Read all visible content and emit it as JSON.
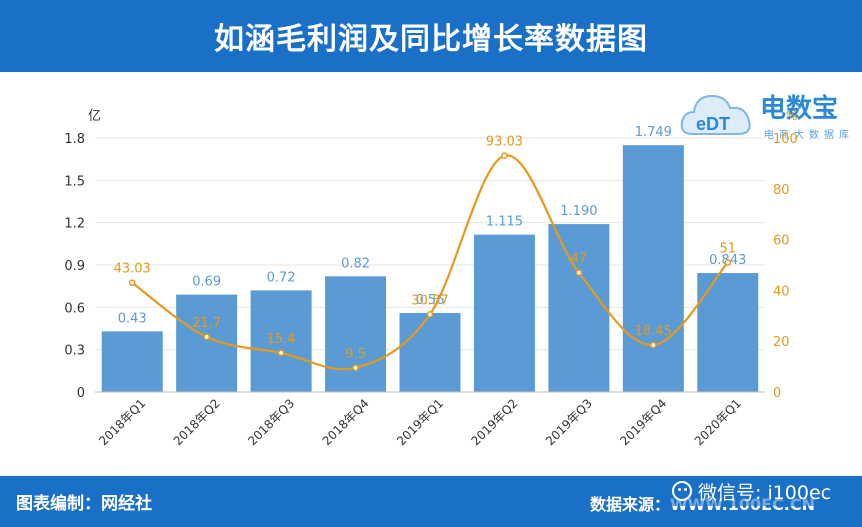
{
  "header": {
    "title": "如涵毛利润及同比增长率数据图"
  },
  "footer": {
    "credit": "图表编制：网经社",
    "source": "数据来源：WWW.100EC.CN",
    "wechat": "微信号: i100ec"
  },
  "logo": {
    "brand": "电数宝",
    "tag": "电商大数据库",
    "badge": "eDT"
  },
  "colors": {
    "bar": "#5b9bd5",
    "line": "#e59a1c",
    "header": "#1a6fc6",
    "bar_label": "#5b9bd5",
    "line_label": "#e59a1c"
  },
  "chart_data": {
    "type": "bar",
    "title": "如涵毛利润及同比增长率数据图",
    "categories": [
      "2018年Q1",
      "2018年Q2",
      "2018年Q3",
      "2018年Q4",
      "2019年Q1",
      "2019年Q2",
      "2019年Q3",
      "2019年Q4",
      "2020年Q1"
    ],
    "y_unit_label": "亿",
    "y2_unit_label": "%",
    "ylim": [
      0,
      1.8
    ],
    "yticks": [
      "0",
      "0.3",
      "0.6",
      "0.9",
      "1.2",
      "1.5",
      "1.8"
    ],
    "y2lim": [
      0,
      100
    ],
    "y2ticks": [
      "0",
      "20",
      "40",
      "60",
      "80",
      "100"
    ],
    "series": [
      {
        "type": "bar",
        "axis": "left",
        "values": [
          0.43,
          0.69,
          0.72,
          0.82,
          0.56,
          1.115,
          1.19,
          1.749,
          0.843
        ],
        "labels": [
          "0.43",
          "0.69",
          "0.72",
          "0.82",
          "0.56",
          "1.115",
          "1.190",
          "1.749",
          "0.843"
        ]
      },
      {
        "type": "line",
        "axis": "right",
        "values": [
          43.03,
          21.7,
          15.4,
          9.5,
          30.57,
          93.03,
          47,
          18.45,
          51
        ],
        "labels": [
          "43.03",
          "21.7",
          "15.4",
          "9.5",
          "30.57",
          "93.03",
          "47",
          "18.45",
          "51"
        ]
      }
    ],
    "grid": true
  }
}
